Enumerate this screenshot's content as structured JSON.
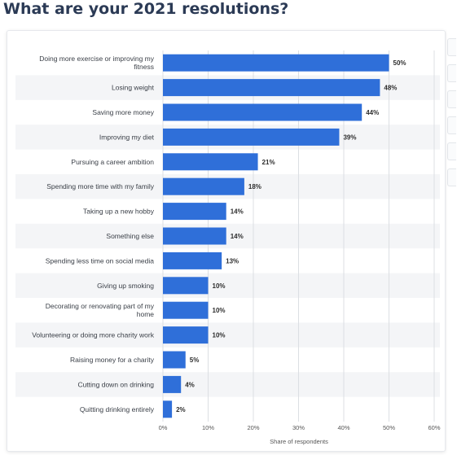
{
  "page": {
    "title": "What are your 2021 resolutions?"
  },
  "chart_data": {
    "type": "bar",
    "orientation": "horizontal",
    "title": "What are your 2021 resolutions?",
    "xlabel": "Share of respondents",
    "ylabel": "",
    "xlim": [
      0,
      60
    ],
    "x_ticks": [
      "0%",
      "10%",
      "20%",
      "30%",
      "40%",
      "50%",
      "60%"
    ],
    "grid": true,
    "legend": "none",
    "bar_color": "#2f6fd9",
    "categories": [
      [
        "Doing more exercise or improving my",
        "fitness"
      ],
      [
        "Losing weight"
      ],
      [
        "Saving more money"
      ],
      [
        "Improving my diet"
      ],
      [
        "Pursuing a career ambition"
      ],
      [
        "Spending more time with my family"
      ],
      [
        "Taking up a new hobby"
      ],
      [
        "Something else"
      ],
      [
        "Spending less time on social media"
      ],
      [
        "Giving up smoking"
      ],
      [
        "Decorating or renovating part of my",
        "home"
      ],
      [
        "Volunteering or doing more charity work"
      ],
      [
        "Raising money for a charity"
      ],
      [
        "Cutting down on drinking"
      ],
      [
        "Quitting drinking entirely"
      ]
    ],
    "values": [
      50,
      48,
      44,
      39,
      21,
      18,
      14,
      14,
      13,
      10,
      10,
      10,
      5,
      4,
      2
    ],
    "value_labels": [
      "50%",
      "48%",
      "44%",
      "39%",
      "21%",
      "18%",
      "14%",
      "14%",
      "13%",
      "10%",
      "10%",
      "10%",
      "5%",
      "4%",
      "2%"
    ]
  }
}
